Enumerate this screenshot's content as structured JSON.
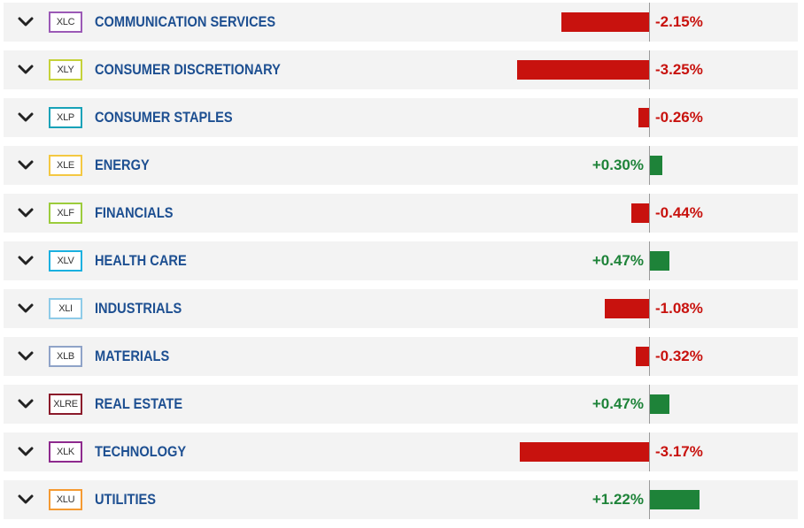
{
  "sectors": [
    {
      "ticker": "XLC",
      "name": "COMMUNICATION SERVICES",
      "change": -2.15,
      "change_label": "-2.15%",
      "color": "#9b59b6"
    },
    {
      "ticker": "XLY",
      "name": "CONSUMER DISCRETIONARY",
      "change": -3.25,
      "change_label": "-3.25%",
      "color": "#c5d23a"
    },
    {
      "ticker": "XLP",
      "name": "CONSUMER STAPLES",
      "change": -0.26,
      "change_label": "-0.26%",
      "color": "#17a2b8"
    },
    {
      "ticker": "XLE",
      "name": "ENERGY",
      "change": 0.3,
      "change_label": "+0.30%",
      "color": "#f4c842"
    },
    {
      "ticker": "XLF",
      "name": "FINANCIALS",
      "change": -0.44,
      "change_label": "-0.44%",
      "color": "#9ccc3c"
    },
    {
      "ticker": "XLV",
      "name": "HEALTH CARE",
      "change": 0.47,
      "change_label": "+0.47%",
      "color": "#1ab0e0"
    },
    {
      "ticker": "XLI",
      "name": "INDUSTRIALS",
      "change": -1.08,
      "change_label": "-1.08%",
      "color": "#8ecbe8"
    },
    {
      "ticker": "XLB",
      "name": "MATERIALS",
      "change": -0.32,
      "change_label": "-0.32%",
      "color": "#8fa3c8"
    },
    {
      "ticker": "XLRE",
      "name": "REAL ESTATE",
      "change": 0.47,
      "change_label": "+0.47%",
      "color": "#8b1a2b"
    },
    {
      "ticker": "XLK",
      "name": "TECHNOLOGY",
      "change": -3.17,
      "change_label": "-3.17%",
      "color": "#8e2a8e"
    },
    {
      "ticker": "XLU",
      "name": "UTILITIES",
      "change": 1.22,
      "change_label": "+1.22%",
      "color": "#f59a32"
    }
  ],
  "colors": {
    "negative": "#c8120e",
    "positive": "#1e8339",
    "name_text": "#1d4f91",
    "row_bg": "#f3f3f3"
  },
  "icons": {
    "expand": "chevron-down-icon"
  }
}
